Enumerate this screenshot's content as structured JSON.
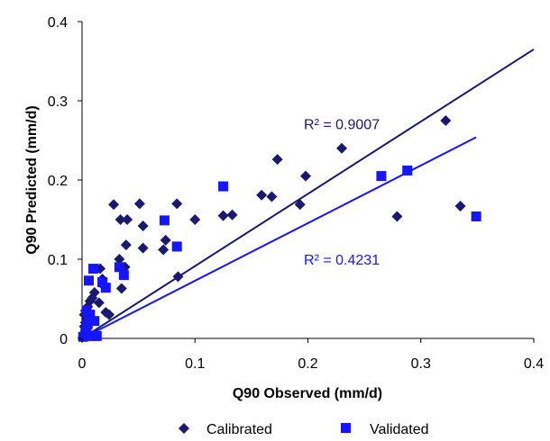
{
  "chart_data": {
    "type": "scatter",
    "title": "",
    "xlabel": "Q90 Observed (mm/d)",
    "ylabel": "Q90 Predicted (mm/d)",
    "xlim": [
      0,
      0.4
    ],
    "ylim": [
      0,
      0.4
    ],
    "xticks": [
      0,
      0.1,
      0.2,
      0.3,
      0.4
    ],
    "yticks": [
      0,
      0.1,
      0.2,
      0.3,
      0.4
    ],
    "xtick_labels": [
      "0",
      "0.1",
      "0.2",
      "0.3",
      "0.4"
    ],
    "ytick_labels": [
      "0",
      "0.1",
      "0.2",
      "0.3",
      "0.4"
    ],
    "grid": false,
    "legend_position": "bottom",
    "series": [
      {
        "name": "Calibrated",
        "marker": "diamond",
        "color": "#191970",
        "points": [
          [
            0.001,
            0.002
          ],
          [
            0.002,
            0.005
          ],
          [
            0.003,
            0.01
          ],
          [
            0.002,
            0.015
          ],
          [
            0.003,
            0.02
          ],
          [
            0.004,
            0.025
          ],
          [
            0.002,
            0.03
          ],
          [
            0.003,
            0.035
          ],
          [
            0.005,
            0.04
          ],
          [
            0.007,
            0.047
          ],
          [
            0.009,
            0.051
          ],
          [
            0.011,
            0.058
          ],
          [
            0.015,
            0.045
          ],
          [
            0.016,
            0.088
          ],
          [
            0.018,
            0.075
          ],
          [
            0.02,
            0.065
          ],
          [
            0.021,
            0.033
          ],
          [
            0.024,
            0.03
          ],
          [
            0.028,
            0.169
          ],
          [
            0.033,
            0.1
          ],
          [
            0.034,
            0.15
          ],
          [
            0.035,
            0.063
          ],
          [
            0.038,
            0.09
          ],
          [
            0.039,
            0.118
          ],
          [
            0.04,
            0.15
          ],
          [
            0.051,
            0.17
          ],
          [
            0.054,
            0.142
          ],
          [
            0.054,
            0.114
          ],
          [
            0.072,
            0.112
          ],
          [
            0.074,
            0.124
          ],
          [
            0.084,
            0.17
          ],
          [
            0.085,
            0.078
          ],
          [
            0.1,
            0.15
          ],
          [
            0.125,
            0.155
          ],
          [
            0.133,
            0.156
          ],
          [
            0.159,
            0.181
          ],
          [
            0.168,
            0.179
          ],
          [
            0.173,
            0.226
          ],
          [
            0.193,
            0.169
          ],
          [
            0.198,
            0.205
          ],
          [
            0.23,
            0.24
          ],
          [
            0.279,
            0.154
          ],
          [
            0.322,
            0.275
          ],
          [
            0.335,
            0.167
          ]
        ]
      },
      {
        "name": "Validated",
        "marker": "square",
        "color": "#1515FF",
        "points": [
          [
            0.001,
            0.002
          ],
          [
            0.003,
            0.006
          ],
          [
            0.004,
            0.012
          ],
          [
            0.005,
            0.018
          ],
          [
            0.006,
            0.024
          ],
          [
            0.007,
            0.03
          ],
          [
            0.004,
            0.035
          ],
          [
            0.006,
            0.073
          ],
          [
            0.009,
            0.003
          ],
          [
            0.01,
            0.088
          ],
          [
            0.011,
            0.022
          ],
          [
            0.013,
            0.003
          ],
          [
            0.018,
            0.071
          ],
          [
            0.021,
            0.064
          ],
          [
            0.033,
            0.09
          ],
          [
            0.037,
            0.08
          ],
          [
            0.073,
            0.149
          ],
          [
            0.084,
            0.116
          ],
          [
            0.125,
            0.192
          ],
          [
            0.265,
            0.205
          ],
          [
            0.288,
            0.212
          ],
          [
            0.349,
            0.154
          ]
        ]
      }
    ],
    "trendlines": [
      {
        "series": "Calibrated",
        "x": [
          0,
          0.4
        ],
        "y": [
          0,
          0.365
        ],
        "color": "#191970",
        "label": "R² = 0.9007",
        "label_at": [
          0.23,
          0.271
        ]
      },
      {
        "series": "Validated",
        "x": [
          0,
          0.349
        ],
        "y": [
          0,
          0.254
        ],
        "color": "#1515FF",
        "label": "R² = 0.4231",
        "label_at": [
          0.23,
          0.1
        ]
      }
    ]
  }
}
